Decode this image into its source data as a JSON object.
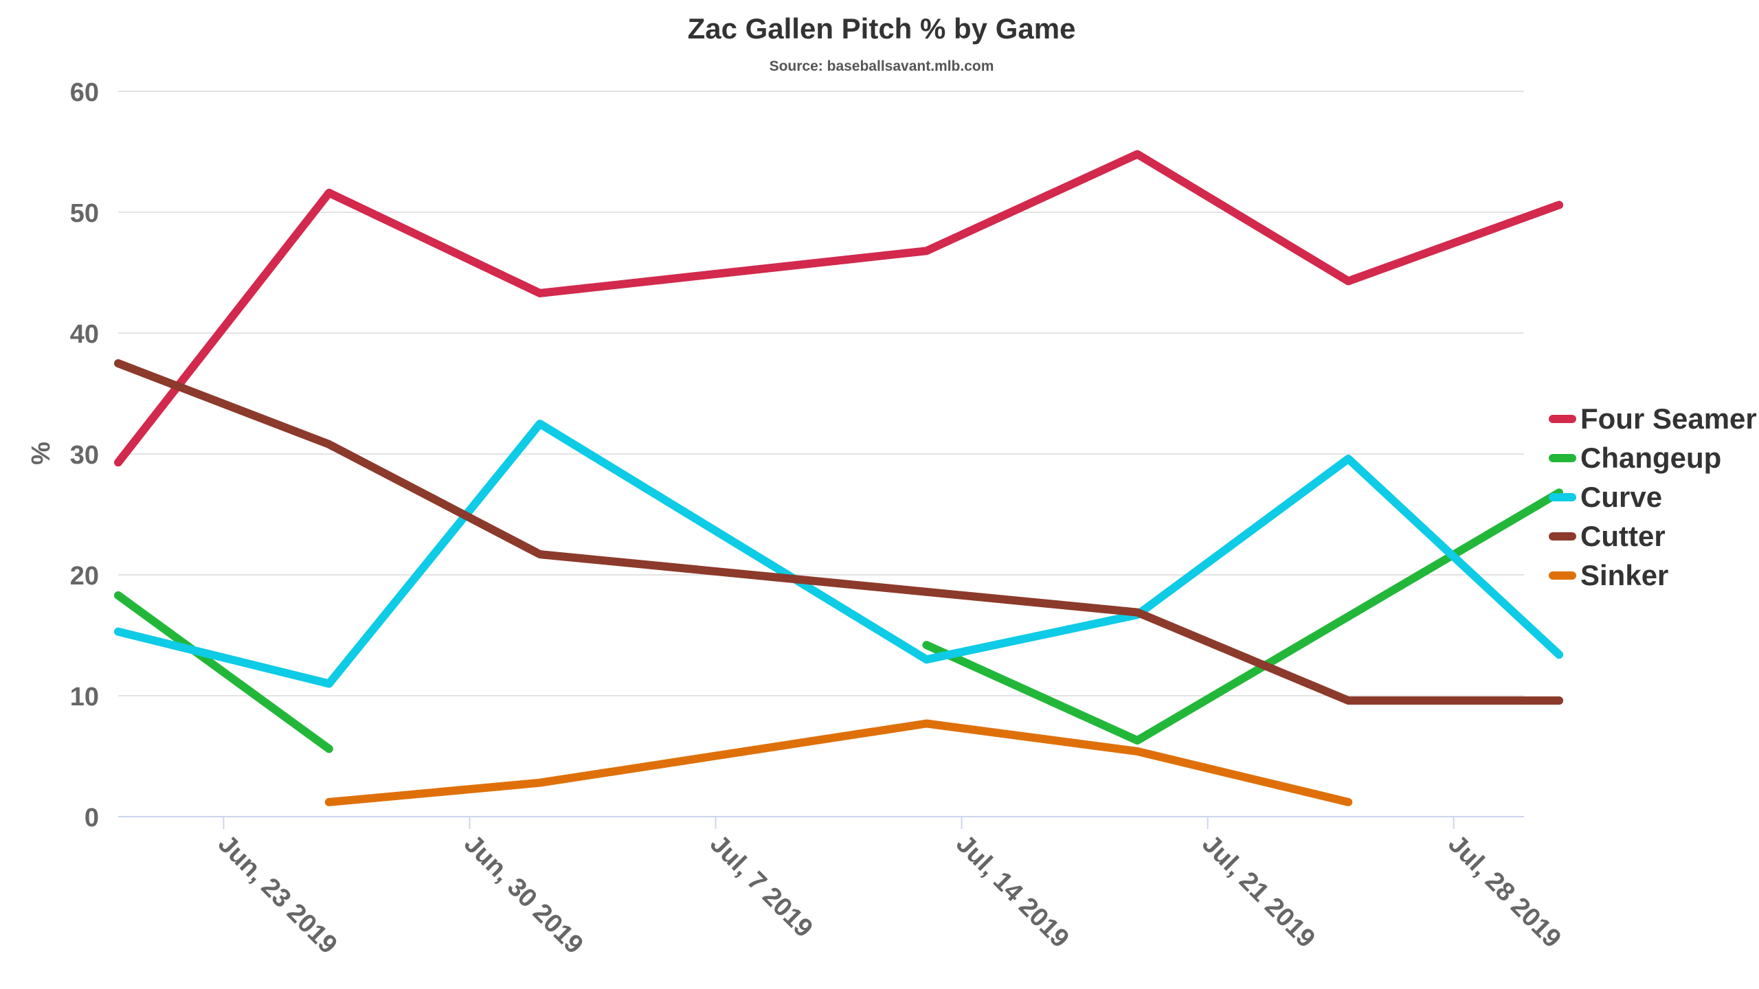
{
  "chart_data": {
    "type": "line",
    "title": "Zac Gallen Pitch % by Game",
    "subtitle": "Source: baseballsavant.mlb.com",
    "ylabel": "%",
    "xlabel": "",
    "ylim": [
      0,
      60
    ],
    "yticks": [
      "0",
      "10",
      "20",
      "30",
      "40",
      "50",
      "60"
    ],
    "x_axis": {
      "type": "date",
      "min": "2019-06-20",
      "max": "2019-07-30",
      "ticks": [
        {
          "date": "2019-06-23",
          "label": "Jun, 23 2019"
        },
        {
          "date": "2019-06-30",
          "label": "Jun, 30 2019"
        },
        {
          "date": "2019-07-07",
          "label": "Jul, 7 2019"
        },
        {
          "date": "2019-07-14",
          "label": "Jul, 14 2019"
        },
        {
          "date": "2019-07-21",
          "label": "Jul, 21 2019"
        },
        {
          "date": "2019-07-28",
          "label": "Jul, 28 2019"
        }
      ]
    },
    "grid": true,
    "legend_position": "right",
    "series": [
      {
        "name": "Four Seamer",
        "color": "#d2294d",
        "points": [
          {
            "x": "2019-06-20",
            "y": 29.3
          },
          {
            "x": "2019-06-26",
            "y": 51.6
          },
          {
            "x": "2019-07-02",
            "y": 43.3
          },
          {
            "x": "2019-07-13",
            "y": 46.8
          },
          {
            "x": "2019-07-19",
            "y": 54.8
          },
          {
            "x": "2019-07-25",
            "y": 44.3
          },
          {
            "x": "2019-07-31",
            "y": 50.6
          }
        ]
      },
      {
        "name": "Changeup",
        "color": "#23b73a",
        "points": [
          {
            "x": "2019-06-20",
            "y": 18.3
          },
          {
            "x": "2019-06-26",
            "y": 5.6
          },
          {
            "x": "2019-07-13",
            "y": 14.2
          },
          {
            "x": "2019-07-19",
            "y": 6.3
          },
          {
            "x": "2019-07-31",
            "y": 26.8
          }
        ],
        "segments": [
          [
            0,
            1
          ],
          [
            2,
            3,
            4
          ]
        ]
      },
      {
        "name": "Curve",
        "color": "#0ecbe6",
        "points": [
          {
            "x": "2019-06-20",
            "y": 15.3
          },
          {
            "x": "2019-06-26",
            "y": 11.0
          },
          {
            "x": "2019-07-02",
            "y": 32.5
          },
          {
            "x": "2019-07-13",
            "y": 13.0
          },
          {
            "x": "2019-07-19",
            "y": 16.7
          },
          {
            "x": "2019-07-25",
            "y": 29.6
          },
          {
            "x": "2019-07-31",
            "y": 13.4
          }
        ]
      },
      {
        "name": "Cutter",
        "color": "#8c3a2b",
        "points": [
          {
            "x": "2019-06-20",
            "y": 37.5
          },
          {
            "x": "2019-06-26",
            "y": 30.8
          },
          {
            "x": "2019-07-02",
            "y": 21.7
          },
          {
            "x": "2019-07-19",
            "y": 16.9
          },
          {
            "x": "2019-07-25",
            "y": 9.6
          },
          {
            "x": "2019-07-31",
            "y": 9.6
          }
        ]
      },
      {
        "name": "Sinker",
        "color": "#df7009",
        "points": [
          {
            "x": "2019-06-26",
            "y": 1.2
          },
          {
            "x": "2019-07-02",
            "y": 2.8
          },
          {
            "x": "2019-07-13",
            "y": 7.7
          },
          {
            "x": "2019-07-19",
            "y": 5.4
          },
          {
            "x": "2019-07-25",
            "y": 1.2
          }
        ]
      }
    ]
  }
}
